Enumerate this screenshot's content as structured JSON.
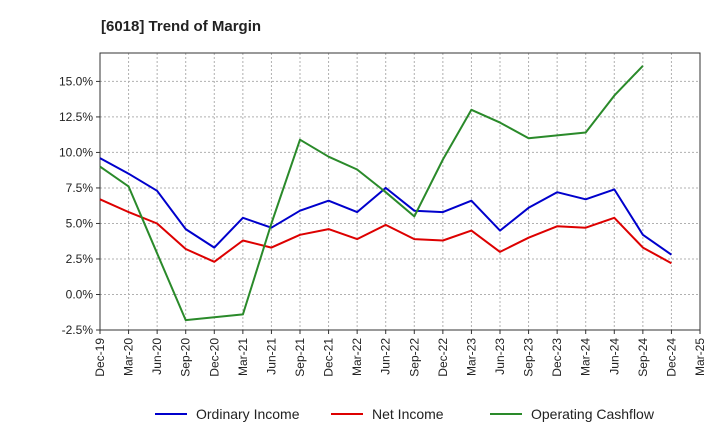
{
  "chart_data": {
    "type": "line",
    "title": "[6018]  Trend of Margin",
    "xlabel": "",
    "ylabel": "",
    "x": [
      "Dec-19",
      "Mar-20",
      "Jun-20",
      "Sep-20",
      "Dec-20",
      "Mar-21",
      "Jun-21",
      "Sep-21",
      "Dec-21",
      "Mar-22",
      "Jun-22",
      "Sep-22",
      "Dec-22",
      "Mar-23",
      "Jun-23",
      "Sep-23",
      "Dec-23",
      "Mar-24",
      "Jun-24",
      "Sep-24",
      "Dec-24",
      "Mar-25"
    ],
    "ylim": [
      -2.5,
      17.0
    ],
    "yticks": [
      -2.5,
      0.0,
      2.5,
      5.0,
      7.5,
      10.0,
      12.5,
      15.0
    ],
    "ytick_labels": [
      "-2.5%",
      "0.0%",
      "2.5%",
      "5.0%",
      "7.5%",
      "10.0%",
      "12.5%",
      "15.0%"
    ],
    "grid": true,
    "legend_position": "bottom",
    "series": [
      {
        "name": "Ordinary Income",
        "color": "#0000cc",
        "values": [
          9.6,
          8.5,
          7.3,
          4.6,
          3.3,
          5.4,
          4.7,
          5.9,
          6.6,
          5.8,
          7.5,
          5.9,
          5.8,
          6.6,
          4.5,
          6.1,
          7.2,
          6.7,
          7.4,
          4.2,
          2.8,
          null
        ]
      },
      {
        "name": "Net Income",
        "color": "#dd0000",
        "values": [
          6.7,
          5.8,
          5.0,
          3.2,
          2.3,
          3.8,
          3.3,
          4.2,
          4.6,
          3.9,
          4.9,
          3.9,
          3.8,
          4.5,
          3.0,
          4.0,
          4.8,
          4.7,
          5.4,
          3.3,
          2.2,
          null
        ]
      },
      {
        "name": "Operating Cashflow",
        "color": "#2a8a2a",
        "values": [
          9.0,
          7.6,
          2.9,
          -1.8,
          -1.6,
          -1.4,
          5.0,
          10.9,
          9.7,
          8.8,
          7.2,
          5.5,
          9.5,
          13.0,
          12.1,
          11.0,
          11.2,
          11.4,
          14.0,
          16.1,
          null,
          null
        ]
      }
    ]
  }
}
